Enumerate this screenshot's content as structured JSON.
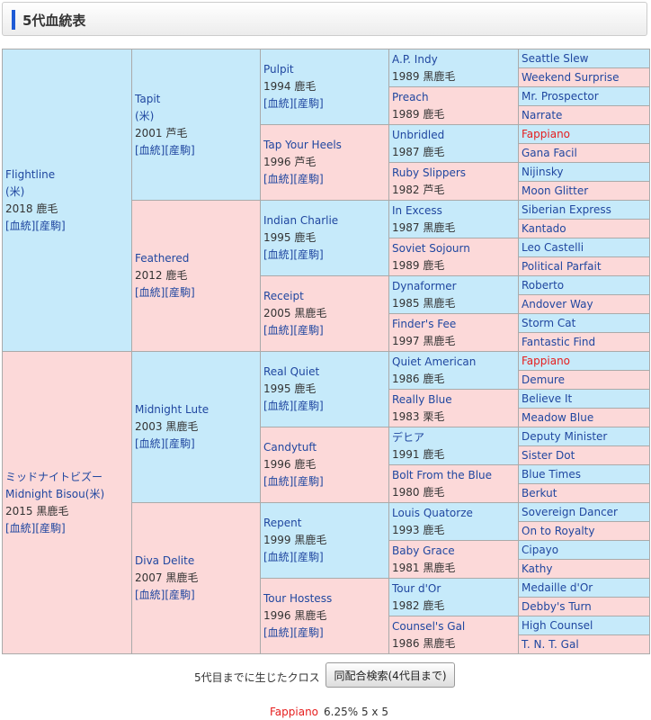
{
  "title": "5代血統表",
  "link_pedigree": "[血統]",
  "link_foal": "[産駒]",
  "horses": {
    "g1": [
      {
        "name": "Flightline",
        "origin": "(米)",
        "year": "2018 鹿毛",
        "sex": "m"
      },
      {
        "name": "ミッドナイトビズー",
        "name2": "Midnight Bisou",
        "origin": "(米)",
        "year": "2015 黒鹿毛",
        "sex": "f"
      }
    ],
    "g2": [
      {
        "name": "Tapit",
        "origin": "(米)",
        "year": "2001 芦毛",
        "sex": "m"
      },
      {
        "name": "Feathered",
        "year": "2012 鹿毛",
        "sex": "f"
      },
      {
        "name": "Midnight Lute",
        "year": "2003 黒鹿毛",
        "sex": "m"
      },
      {
        "name": "Diva Delite",
        "year": "2007 黒鹿毛",
        "sex": "f"
      }
    ],
    "g3": [
      {
        "name": "Pulpit",
        "year": "1994 鹿毛",
        "sex": "m"
      },
      {
        "name": "Tap Your Heels",
        "year": "1996 芦毛",
        "sex": "f"
      },
      {
        "name": "Indian Charlie",
        "year": "1995 鹿毛",
        "sex": "m"
      },
      {
        "name": "Receipt",
        "year": "2005 黒鹿毛",
        "sex": "f"
      },
      {
        "name": "Real Quiet",
        "year": "1995 鹿毛",
        "sex": "m"
      },
      {
        "name": "Candytuft",
        "year": "1996 鹿毛",
        "sex": "f"
      },
      {
        "name": "Repent",
        "year": "1999 黒鹿毛",
        "sex": "m"
      },
      {
        "name": "Tour Hostess",
        "year": "1996 黒鹿毛",
        "sex": "f"
      }
    ],
    "g4": [
      {
        "name": "A.P. Indy",
        "year": "1989 黒鹿毛",
        "sex": "m"
      },
      {
        "name": "Preach",
        "year": "1989 鹿毛",
        "sex": "f"
      },
      {
        "name": "Unbridled",
        "year": "1987 鹿毛",
        "sex": "m"
      },
      {
        "name": "Ruby Slippers",
        "year": "1982 芦毛",
        "sex": "f"
      },
      {
        "name": "In Excess",
        "year": "1987 黒鹿毛",
        "sex": "m"
      },
      {
        "name": "Soviet Sojourn",
        "year": "1989 鹿毛",
        "sex": "f"
      },
      {
        "name": "Dynaformer",
        "year": "1985 黒鹿毛",
        "sex": "m"
      },
      {
        "name": "Finder's Fee",
        "year": "1997 黒鹿毛",
        "sex": "f"
      },
      {
        "name": "Quiet American",
        "year": "1986 鹿毛",
        "sex": "m"
      },
      {
        "name": "Really Blue",
        "year": "1983 栗毛",
        "sex": "f"
      },
      {
        "name": "デヒア",
        "year": "1991 鹿毛",
        "sex": "m"
      },
      {
        "name": "Bolt From the Blue",
        "year": "1980 鹿毛",
        "sex": "f"
      },
      {
        "name": "Louis Quatorze",
        "year": "1993 鹿毛",
        "sex": "m"
      },
      {
        "name": "Baby Grace",
        "year": "1981 黒鹿毛",
        "sex": "f"
      },
      {
        "name": "Tour d'Or",
        "year": "1982 鹿毛",
        "sex": "m"
      },
      {
        "name": "Counsel's Gal",
        "year": "1986 黒鹿毛",
        "sex": "f"
      }
    ],
    "g5": [
      {
        "name": "Seattle Slew",
        "sex": "m"
      },
      {
        "name": "Weekend Surprise",
        "sex": "f"
      },
      {
        "name": "Mr. Prospector",
        "sex": "m"
      },
      {
        "name": "Narrate",
        "sex": "f"
      },
      {
        "name": "Fappiano",
        "sex": "m",
        "highlight": true
      },
      {
        "name": "Gana Facil",
        "sex": "f"
      },
      {
        "name": "Nijinsky",
        "sex": "m"
      },
      {
        "name": "Moon Glitter",
        "sex": "f"
      },
      {
        "name": "Siberian Express",
        "sex": "m"
      },
      {
        "name": "Kantado",
        "sex": "f"
      },
      {
        "name": "Leo Castelli",
        "sex": "m"
      },
      {
        "name": "Political Parfait",
        "sex": "f"
      },
      {
        "name": "Roberto",
        "sex": "m"
      },
      {
        "name": "Andover Way",
        "sex": "f"
      },
      {
        "name": "Storm Cat",
        "sex": "m"
      },
      {
        "name": "Fantastic Find",
        "sex": "f"
      },
      {
        "name": "Fappiano",
        "sex": "m",
        "highlight": true
      },
      {
        "name": "Demure",
        "sex": "f"
      },
      {
        "name": "Believe It",
        "sex": "m"
      },
      {
        "name": "Meadow Blue",
        "sex": "f"
      },
      {
        "name": "Deputy Minister",
        "sex": "m"
      },
      {
        "name": "Sister Dot",
        "sex": "f"
      },
      {
        "name": "Blue Times",
        "sex": "m"
      },
      {
        "name": "Berkut",
        "sex": "f"
      },
      {
        "name": "Sovereign Dancer",
        "sex": "m"
      },
      {
        "name": "On to Royalty",
        "sex": "f"
      },
      {
        "name": "Cipayo",
        "sex": "m"
      },
      {
        "name": "Kathy",
        "sex": "f"
      },
      {
        "name": "Medaille d'Or",
        "sex": "m"
      },
      {
        "name": "Debby's Turn",
        "sex": "f"
      },
      {
        "name": "High Counsel",
        "sex": "m"
      },
      {
        "name": "T. N. T. Gal",
        "sex": "f"
      }
    ]
  },
  "cross": {
    "label": "5代目までに生じたクロス",
    "button": "同配合検索(4代目まで)",
    "result_name": "Fappiano",
    "result_stats": "6.25%  5 x 5"
  },
  "colors": {
    "male_bg": "#c6eafa",
    "female_bg": "#fcd9d9",
    "highlight": "#e61e1e",
    "link": "#2047a0"
  }
}
